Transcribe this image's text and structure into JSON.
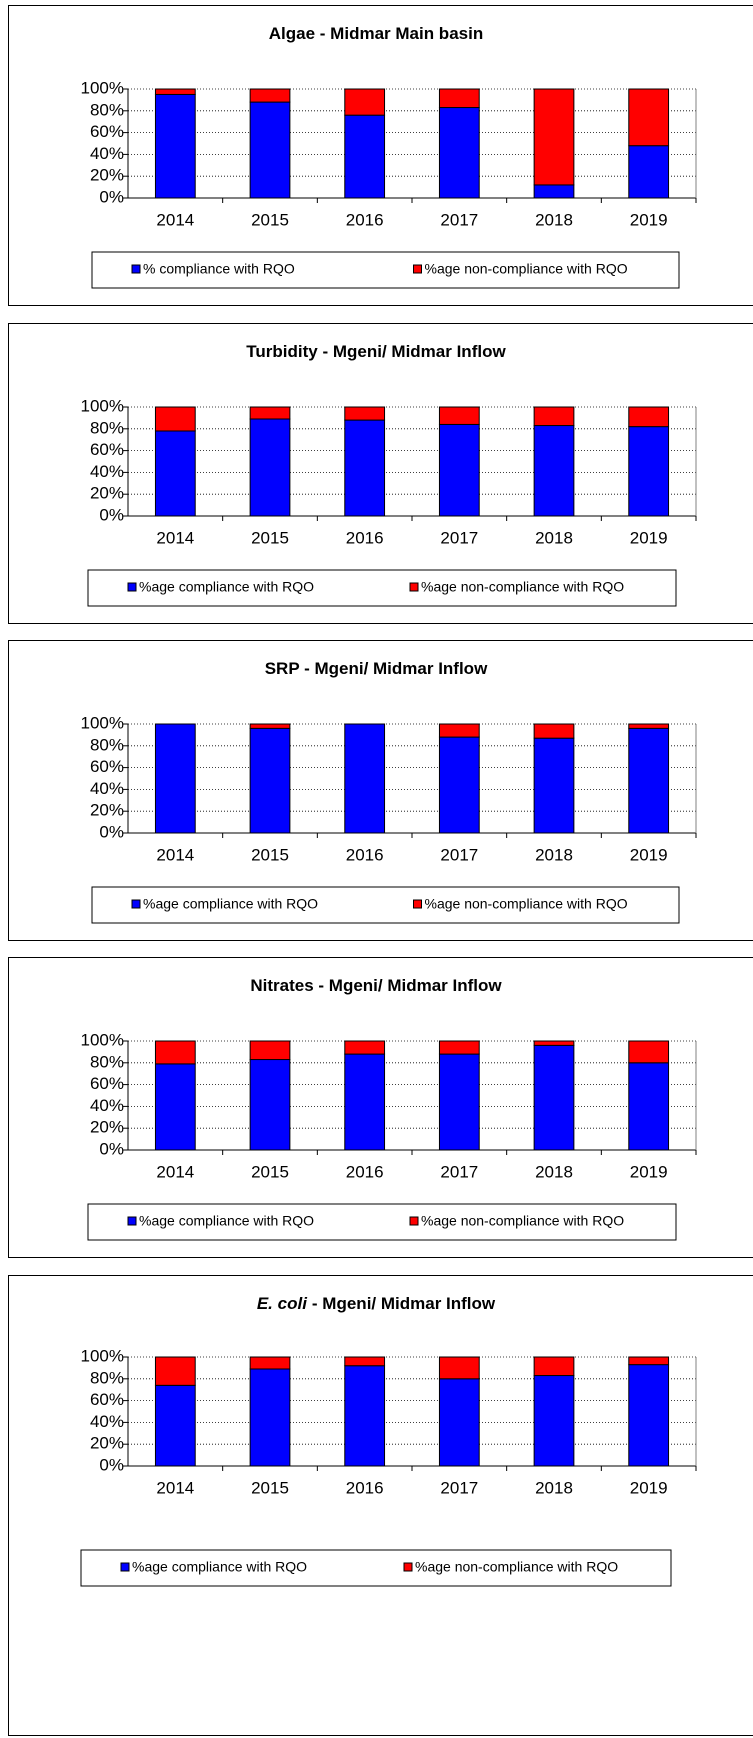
{
  "chart_data": [
    {
      "type": "bar",
      "stacked": true,
      "title": "Algae - Midmar Main basin",
      "categories": [
        "2014",
        "2015",
        "2016",
        "2017",
        "2018",
        "2019"
      ],
      "series": [
        {
          "name": "% compliance with RQO",
          "color": "#0000ff",
          "values": [
            95,
            88,
            76,
            83,
            12,
            48
          ]
        },
        {
          "name": "%age non-compliance with RQO",
          "color": "#ff0000",
          "values": [
            5,
            12,
            24,
            17,
            88,
            52
          ]
        }
      ],
      "ylim": [
        0,
        100
      ],
      "yticks": [
        {
          "value": 0,
          "label": "0%"
        },
        {
          "value": 20,
          "label": "20%"
        },
        {
          "value": 40,
          "label": "40%"
        },
        {
          "value": 60,
          "label": "60%"
        },
        {
          "value": 80,
          "label": "80%"
        },
        {
          "value": 100,
          "label": "100%"
        }
      ],
      "grid": true,
      "legend": "bottom"
    },
    {
      "type": "bar",
      "stacked": true,
      "title": "Turbidity - Mgeni/ Midmar Inflow",
      "categories": [
        "2014",
        "2015",
        "2016",
        "2017",
        "2018",
        "2019"
      ],
      "series": [
        {
          "name": "%age compliance with RQO",
          "color": "#0000ff",
          "values": [
            78,
            89,
            88,
            84,
            83,
            82
          ]
        },
        {
          "name": "%age non-compliance with RQO",
          "color": "#ff0000",
          "values": [
            22,
            11,
            12,
            16,
            17,
            18
          ]
        }
      ],
      "ylim": [
        0,
        100
      ],
      "yticks": [
        {
          "value": 0,
          "label": "0%"
        },
        {
          "value": 20,
          "label": "20%"
        },
        {
          "value": 40,
          "label": "40%"
        },
        {
          "value": 60,
          "label": "60%"
        },
        {
          "value": 80,
          "label": "80%"
        },
        {
          "value": 100,
          "label": "100%"
        }
      ],
      "grid": true,
      "legend": "bottom"
    },
    {
      "type": "bar",
      "stacked": true,
      "title": "SRP - Mgeni/ Midmar Inflow",
      "categories": [
        "2014",
        "2015",
        "2016",
        "2017",
        "2018",
        "2019"
      ],
      "series": [
        {
          "name": "%age compliance with RQO",
          "color": "#0000ff",
          "values": [
            100,
            96,
            100,
            88,
            87,
            96
          ]
        },
        {
          "name": "%age non-compliance with RQO",
          "color": "#ff0000",
          "values": [
            0,
            4,
            0,
            12,
            13,
            4
          ]
        }
      ],
      "ylim": [
        0,
        100
      ],
      "yticks": [
        {
          "value": 0,
          "label": "0%"
        },
        {
          "value": 20,
          "label": "20%"
        },
        {
          "value": 40,
          "label": "40%"
        },
        {
          "value": 60,
          "label": "60%"
        },
        {
          "value": 80,
          "label": "80%"
        },
        {
          "value": 100,
          "label": "100%"
        }
      ],
      "grid": true,
      "legend": "bottom"
    },
    {
      "type": "bar",
      "stacked": true,
      "title": "Nitrates - Mgeni/ Midmar Inflow",
      "categories": [
        "2014",
        "2015",
        "2016",
        "2017",
        "2018",
        "2019"
      ],
      "series": [
        {
          "name": "%age compliance with RQO",
          "color": "#0000ff",
          "values": [
            79,
            83,
            88,
            88,
            96,
            80
          ]
        },
        {
          "name": "%age non-compliance with RQO",
          "color": "#ff0000",
          "values": [
            21,
            17,
            12,
            12,
            4,
            20
          ]
        }
      ],
      "ylim": [
        0,
        100
      ],
      "yticks": [
        {
          "value": 0,
          "label": "0%"
        },
        {
          "value": 20,
          "label": "20%"
        },
        {
          "value": 40,
          "label": "40%"
        },
        {
          "value": 60,
          "label": "60%"
        },
        {
          "value": 80,
          "label": "80%"
        },
        {
          "value": 100,
          "label": "100%"
        }
      ],
      "grid": true,
      "legend": "bottom"
    },
    {
      "type": "bar",
      "stacked": true,
      "title_italic": "E. coli",
      "title": "- Mgeni/ Midmar Inflow",
      "categories": [
        "2014",
        "2015",
        "2016",
        "2017",
        "2018",
        "2019"
      ],
      "series": [
        {
          "name": "%age compliance with RQO",
          "color": "#0000ff",
          "values": [
            74,
            89,
            92,
            80,
            83,
            93
          ]
        },
        {
          "name": "%age non-compliance with RQO",
          "color": "#ff0000",
          "values": [
            26,
            11,
            8,
            20,
            17,
            7
          ]
        }
      ],
      "ylim": [
        0,
        100
      ],
      "yticks": [
        {
          "value": 0,
          "label": "0%"
        },
        {
          "value": 20,
          "label": "20%"
        },
        {
          "value": 40,
          "label": "40%"
        },
        {
          "value": 60,
          "label": "60%"
        },
        {
          "value": 80,
          "label": "80%"
        },
        {
          "value": 100,
          "label": "100%"
        }
      ],
      "grid": true,
      "legend": "bottom"
    }
  ]
}
